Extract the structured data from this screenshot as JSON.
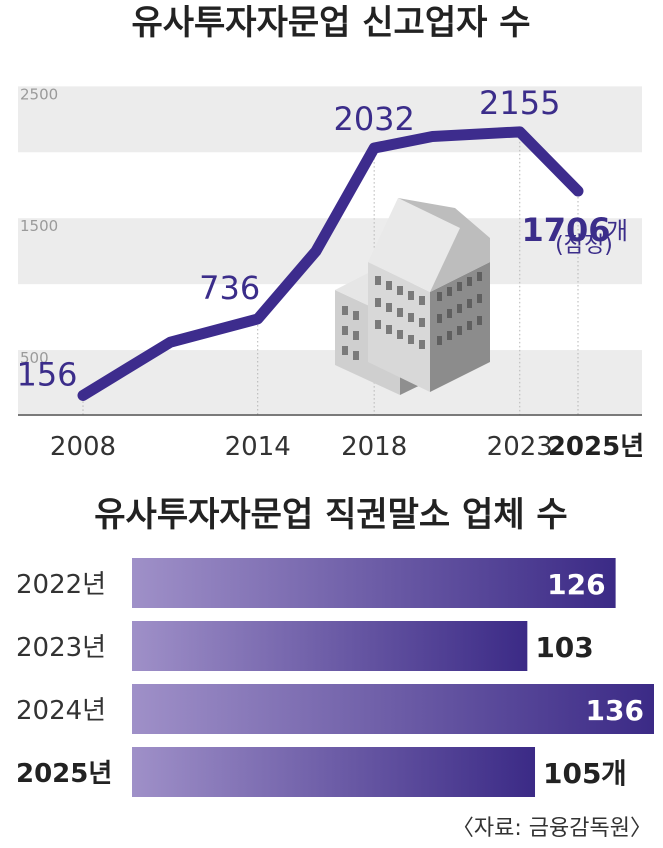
{
  "colors": {
    "line": "#3d2c8d",
    "label": "#3b2d8a",
    "band": "#ececec",
    "bar_start": "#9f90c8",
    "bar_end": "#3b2a86"
  },
  "chart_data": [
    {
      "type": "line",
      "title": "유사투자자문업 신고업자 수",
      "x": [
        2008,
        2011,
        2014,
        2016,
        2018,
        2020,
        2023,
        2025
      ],
      "values": [
        156,
        560,
        736,
        1250,
        2032,
        2120,
        2155,
        1706
      ],
      "ylim": [
        0,
        2700
      ],
      "yticks": [
        500,
        1500,
        2500
      ],
      "ytick_labels": [
        "500",
        "1500",
        "2500"
      ],
      "xticks": [
        2008,
        2014,
        2018,
        2023,
        2025
      ],
      "xtick_labels": [
        "2008",
        "2014",
        "2018",
        "2023",
        "2025년"
      ],
      "data_labels": [
        {
          "x": 2008,
          "text": "156"
        },
        {
          "x": 2014,
          "text": "736"
        },
        {
          "x": 2018,
          "text": "2032"
        },
        {
          "x": 2023,
          "text": "2155"
        },
        {
          "x": 2025,
          "text": "1706"
        }
      ],
      "final_unit": "개",
      "final_note": "(잠정)"
    },
    {
      "type": "bar",
      "orientation": "horizontal",
      "title": "유사투자자문업 직권말소 업체 수",
      "categories": [
        "2022년",
        "2023년",
        "2024년",
        "2025년"
      ],
      "values": [
        126,
        103,
        136,
        105
      ],
      "value_labels": [
        "126",
        "103",
        "136",
        "105"
      ],
      "final_unit": "개",
      "xlim": [
        0,
        136
      ]
    }
  ],
  "source": "〈자료: 금융감독원〉"
}
